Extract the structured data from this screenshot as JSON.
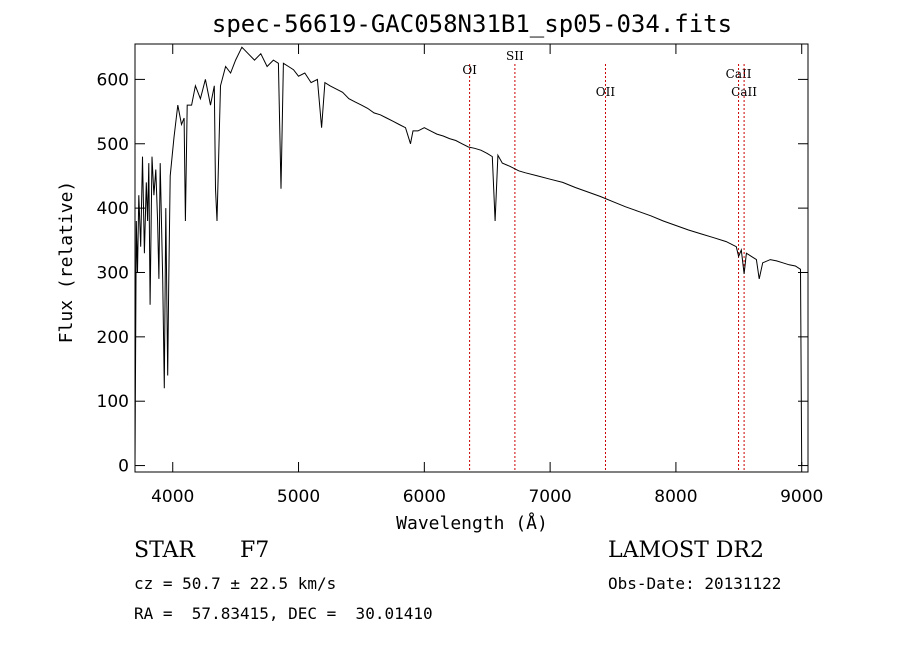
{
  "chart_data": {
    "type": "line",
    "title": "spec-56619-GAC058N31B1_sp05-034.fits",
    "xlabel": "Wavelength (Å)",
    "ylabel": "Flux (relative)",
    "xlim": [
      3700,
      9050
    ],
    "ylim": [
      -10,
      655
    ],
    "xticks": [
      4000,
      5000,
      6000,
      7000,
      8000,
      9000
    ],
    "yticks": [
      0,
      100,
      200,
      300,
      400,
      500,
      600
    ],
    "line_color": "#000000",
    "marker_color": "#cc0000",
    "series": [
      {
        "x": [
          3700,
          3710,
          3720,
          3730,
          3745,
          3760,
          3775,
          3790,
          3800,
          3810,
          3820,
          3835,
          3850,
          3865,
          3880,
          3890,
          3900,
          3920,
          3933,
          3945,
          3960,
          3968,
          3980,
          3995,
          4010,
          4040,
          4070,
          4090,
          4101,
          4115,
          4150,
          4180,
          4220,
          4260,
          4300,
          4330,
          4340,
          4352,
          4380,
          4420,
          4460,
          4500,
          4550,
          4600,
          4650,
          4700,
          4750,
          4800,
          4840,
          4861,
          4880,
          4920,
          4960,
          5000,
          5050,
          5100,
          5150,
          5183,
          5210,
          5250,
          5300,
          5350,
          5400,
          5450,
          5500,
          5550,
          5600,
          5650,
          5700,
          5750,
          5800,
          5850,
          5890,
          5895,
          5910,
          5950,
          6000,
          6050,
          6100,
          6150,
          6200,
          6250,
          6300,
          6350,
          6400,
          6450,
          6500,
          6540,
          6563,
          6585,
          6620,
          6680,
          6750,
          6800,
          6900,
          7000,
          7100,
          7200,
          7300,
          7400,
          7500,
          7600,
          7700,
          7800,
          7900,
          8000,
          8100,
          8200,
          8300,
          8400,
          8480,
          8498,
          8520,
          8542,
          8560,
          8600,
          8640,
          8662,
          8690,
          8750,
          8800,
          8850,
          8900,
          8950,
          8990,
          9000
        ],
        "y": [
          0,
          380,
          300,
          420,
          340,
          480,
          330,
          440,
          380,
          470,
          250,
          480,
          420,
          460,
          380,
          290,
          470,
          290,
          120,
          400,
          140,
          280,
          450,
          480,
          510,
          560,
          530,
          540,
          380,
          560,
          560,
          590,
          570,
          600,
          560,
          590,
          430,
          380,
          590,
          620,
          610,
          630,
          650,
          640,
          630,
          640,
          620,
          630,
          625,
          430,
          625,
          620,
          615,
          605,
          610,
          595,
          600,
          525,
          595,
          590,
          585,
          580,
          570,
          565,
          560,
          555,
          548,
          545,
          540,
          535,
          530,
          525,
          500,
          505,
          520,
          520,
          525,
          520,
          515,
          512,
          508,
          505,
          500,
          495,
          493,
          490,
          485,
          480,
          380,
          482,
          470,
          465,
          458,
          455,
          450,
          445,
          440,
          432,
          425,
          418,
          410,
          402,
          395,
          388,
          380,
          373,
          366,
          360,
          354,
          348,
          340,
          325,
          335,
          298,
          330,
          325,
          320,
          290,
          315,
          320,
          318,
          315,
          312,
          310,
          305,
          0
        ]
      }
    ],
    "markers": [
      {
        "name": "OI",
        "x": 6360
      },
      {
        "name": "SII",
        "x": 6720
      },
      {
        "name": "OII",
        "x": 7440
      },
      {
        "name": "CaII",
        "x": 8498
      },
      {
        "name": "CaII",
        "x": 8542
      }
    ]
  },
  "info": {
    "object": "STAR",
    "subclass": "F7",
    "survey": "LAMOST DR2",
    "cz": "cz = 50.7 ± 22.5 km/s",
    "obsdate": "Obs-Date: 20131122",
    "radec": "RA =  57.83415, DEC =  30.01410"
  }
}
